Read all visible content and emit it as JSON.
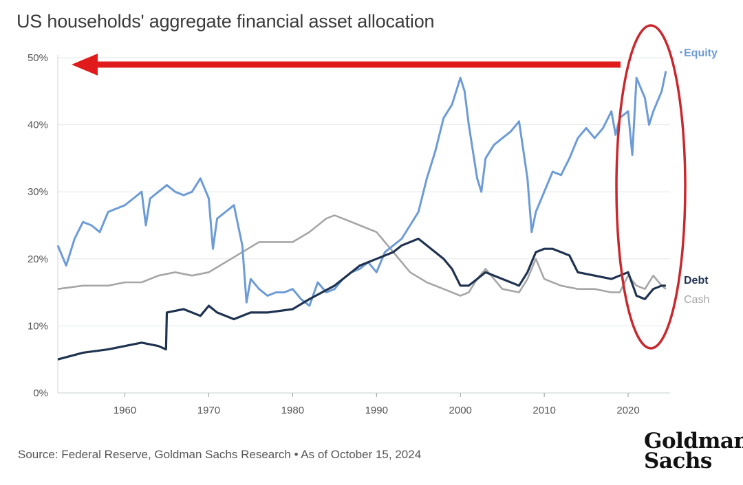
{
  "title": "US households' aggregate financial asset allocation",
  "source": "Source: Federal Reserve, Goldman Sachs Research • As of October 15, 2024",
  "logo": {
    "line1": "Goldman",
    "line2": "Sachs"
  },
  "colors": {
    "equity": "#6c9bd7",
    "debt": "#1f3350",
    "cash": "#a6a6a6",
    "annotation": "#e01b1b",
    "grid": "#e3e6ea"
  },
  "chart_data": {
    "type": "line",
    "title": "US households' aggregate financial asset allocation",
    "xlabel": "",
    "ylabel": "",
    "xlim": [
      1952,
      2025
    ],
    "ylim": [
      0,
      50
    ],
    "x_ticks": [
      1960,
      1970,
      1980,
      1990,
      2000,
      2010,
      2020
    ],
    "y_ticks": [
      0,
      10,
      20,
      30,
      40,
      50
    ],
    "y_tick_labels": [
      "0%",
      "10%",
      "20%",
      "30%",
      "40%",
      "50%"
    ],
    "legend": "labels at right end of each series",
    "series": [
      {
        "name": "Equity",
        "label_position": "top-right",
        "x": [
          1952,
          1953,
          1954,
          1955,
          1956,
          1957,
          1958,
          1959,
          1960,
          1961,
          1962,
          1962.5,
          1963,
          1964,
          1965,
          1966,
          1967,
          1968,
          1969,
          1970,
          1970.5,
          1971,
          1972,
          1973,
          1974,
          1974.5,
          1975,
          1976,
          1977,
          1978,
          1979,
          1980,
          1981,
          1982,
          1983,
          1984,
          1985,
          1986,
          1987,
          1988,
          1989,
          1990,
          1991,
          1992,
          1993,
          1994,
          1995,
          1996,
          1997,
          1998,
          1999,
          2000,
          2000.5,
          2001,
          2002,
          2002.5,
          2003,
          2004,
          2005,
          2006,
          2007,
          2008,
          2008.5,
          2009,
          2010,
          2011,
          2012,
          2013,
          2014,
          2015,
          2016,
          2017,
          2018,
          2018.5,
          2019,
          2020,
          2020.5,
          2021,
          2022,
          2022.5,
          2023,
          2024,
          2024.5
        ],
        "values": [
          22,
          19,
          23,
          25.5,
          25,
          24,
          27,
          27.5,
          28,
          29,
          30,
          25,
          29,
          30,
          31,
          30,
          29.5,
          30,
          32,
          29,
          21.5,
          26,
          27,
          28,
          22,
          13.5,
          17,
          15.5,
          14.5,
          15,
          15,
          15.5,
          14,
          13,
          16.5,
          15,
          15.5,
          17,
          18,
          18.5,
          19.5,
          18,
          21,
          22,
          23,
          25,
          27,
          32,
          36,
          41,
          43,
          47,
          45,
          40,
          32,
          30,
          35,
          37,
          38,
          39,
          40.5,
          32,
          24,
          27,
          30,
          33,
          32.5,
          35,
          38,
          39.5,
          38,
          39.5,
          42,
          38.5,
          41,
          42,
          35.5,
          47,
          44,
          40,
          42,
          45,
          48
        ]
      },
      {
        "name": "Debt",
        "label_position": "right",
        "x": [
          1952,
          1955,
          1958,
          1960,
          1962,
          1964,
          1964.9,
          1965,
          1967,
          1969,
          1970,
          1971,
          1973,
          1975,
          1977,
          1980,
          1982,
          1985,
          1988,
          1990,
          1992,
          1993,
          1995,
          1997,
          1998,
          1999,
          2000,
          2001,
          2002,
          2003,
          2005,
          2007,
          2008,
          2009,
          2010,
          2011,
          2012,
          2013,
          2014,
          2016,
          2018,
          2019,
          2020,
          2021,
          2022,
          2023,
          2024,
          2024.5
        ],
        "values": [
          5,
          6,
          6.5,
          7,
          7.5,
          7,
          6.5,
          12,
          12.5,
          11.5,
          13,
          12,
          11,
          12,
          12,
          12.5,
          14,
          16,
          19,
          20,
          21,
          22,
          23,
          21,
          20,
          18.5,
          16,
          16,
          17,
          18,
          17,
          16,
          18,
          21,
          21.5,
          21.5,
          21,
          20.5,
          18,
          17.5,
          17,
          17.5,
          18,
          14.5,
          14,
          15.5,
          16,
          16
        ]
      },
      {
        "name": "Cash",
        "label_position": "right",
        "x": [
          1952,
          1955,
          1958,
          1960,
          1962,
          1964,
          1966,
          1968,
          1970,
          1972,
          1974,
          1976,
          1978,
          1980,
          1982,
          1984,
          1985,
          1986,
          1988,
          1990,
          1992,
          1994,
          1996,
          1998,
          2000,
          2001,
          2002,
          2003,
          2005,
          2007,
          2008,
          2009,
          2010,
          2011,
          2012,
          2014,
          2016,
          2018,
          2019,
          2020,
          2021,
          2022,
          2023,
          2024,
          2024.5
        ],
        "values": [
          15.5,
          16,
          16,
          16.5,
          16.5,
          17.5,
          18,
          17.5,
          18,
          19.5,
          21,
          22.5,
          22.5,
          22.5,
          24,
          26,
          26.5,
          26,
          25,
          24,
          21,
          18,
          16.5,
          15.5,
          14.5,
          15,
          17,
          18.5,
          15.5,
          15,
          17,
          20,
          17,
          16.5,
          16,
          15.5,
          15.5,
          15,
          15,
          17.5,
          16,
          15.5,
          17.5,
          16,
          15.5
        ]
      }
    ]
  }
}
